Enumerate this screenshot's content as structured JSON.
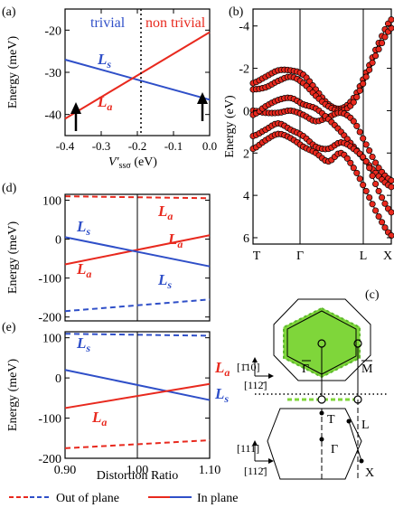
{
  "colors": {
    "red": "#e8291e",
    "blue": "#2f4fc8",
    "green": "#7fd63a",
    "marker_fill": "#e8291e"
  },
  "panel_a": {
    "tag": "(a)",
    "ylabel": "Energy (meV)",
    "xlabel_main": "V′",
    "xlabel_sub": "ssσ",
    "xlabel_unit": " (eV)",
    "region_left": "trivial",
    "region_right": "non trivial",
    "line_Ls": "L",
    "line_La": "L",
    "sub_s": "s",
    "sub_a": "a",
    "xticks": [
      "-0.4",
      "-0.3",
      "-0.2",
      "-0.1",
      "0.0"
    ],
    "yticks": [
      "-20",
      "-30",
      "-40"
    ],
    "chart_data": {
      "type": "line",
      "xlim": [
        -0.4,
        0.0
      ],
      "ylim": [
        -45,
        -15
      ],
      "divider_x": -0.21,
      "arrows_x": [
        -0.37,
        -0.02
      ],
      "series": [
        {
          "name": "Ls",
          "color": "blue",
          "x": [
            -0.4,
            0.0
          ],
          "y": [
            -27,
            -36.5
          ]
        },
        {
          "name": "La",
          "color": "red",
          "x": [
            -0.4,
            0.0
          ],
          "y": [
            -41,
            -20.5
          ]
        }
      ]
    }
  },
  "panel_b": {
    "tag": "(b)",
    "ylabel": "Energy (eV)",
    "xticks": [
      "T",
      "Γ",
      "L",
      "X"
    ],
    "yticks": [
      "-4",
      "-2",
      "0",
      "2",
      "4",
      "6"
    ],
    "chart_data": {
      "type": "scatter",
      "ylim": [
        6.3,
        -4.8
      ],
      "note": "band structure"
    }
  },
  "panel_d": {
    "tag": "(d)",
    "ylabel": "Energy (meV)",
    "yticks": [
      "100",
      "0",
      "-100",
      "-200"
    ],
    "labels": {
      "La_top": "L",
      "Ls_left": "L",
      "La_left": "L",
      "La_right": "L",
      "Ls_right": "L"
    },
    "chart_data": {
      "type": "line",
      "xlim": [
        0.9,
        1.1
      ],
      "ylim": [
        -210,
        115
      ],
      "series": [
        {
          "style": "dashed",
          "color": "red",
          "x": [
            0.9,
            1.1
          ],
          "y": [
            110,
            105
          ]
        },
        {
          "style": "dashed",
          "color": "blue",
          "x": [
            0.9,
            1.1
          ],
          "y": [
            -185,
            -155
          ]
        },
        {
          "style": "solid",
          "color": "red",
          "x": [
            0.9,
            1.1
          ],
          "y": [
            -65,
            10
          ]
        },
        {
          "style": "solid",
          "color": "blue",
          "x": [
            0.9,
            1.1
          ],
          "y": [
            5,
            -70
          ]
        }
      ]
    }
  },
  "panel_e": {
    "tag": "(e)",
    "ylabel": "Energy (meV)",
    "xlabel": "Distortion Ratio",
    "yticks": [
      "100",
      "0",
      "-100",
      "-200"
    ],
    "xticks": [
      "0.90",
      "1.00",
      "1.10"
    ],
    "chart_data": {
      "type": "line",
      "xlim": [
        0.9,
        1.1
      ],
      "ylim": [
        -200,
        115
      ],
      "series": [
        {
          "style": "dashed",
          "color": "blue",
          "x": [
            0.9,
            1.1
          ],
          "y": [
            110,
            105
          ]
        },
        {
          "style": "dashed",
          "color": "red",
          "x": [
            0.9,
            1.1
          ],
          "y": [
            -175,
            -155
          ]
        },
        {
          "style": "solid",
          "color": "blue",
          "x": [
            0.9,
            1.1
          ],
          "y": [
            20,
            -55
          ]
        },
        {
          "style": "solid",
          "color": "red",
          "x": [
            0.9,
            1.1
          ],
          "y": [
            -75,
            -15
          ]
        }
      ]
    }
  },
  "panel_c": {
    "tag": "(c)",
    "labels": {
      "gamma_bar": "Γ",
      "m_bar": "M",
      "T": "T",
      "L": "L",
      "Gamma": "Γ",
      "X": "X"
    },
    "axes_top": {
      "v": "[1̄10]",
      "h": "[112̄]"
    },
    "axes_bottom": {
      "v": "[111]",
      "h": "[112̄]"
    }
  },
  "legend": {
    "out_of_plane": "Out of plane",
    "in_plane": "In plane"
  }
}
